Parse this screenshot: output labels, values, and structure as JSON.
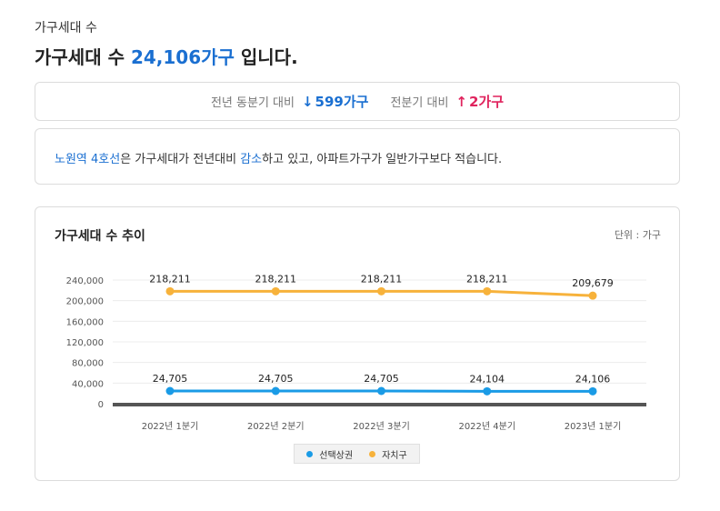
{
  "section_label": "가구세대 수",
  "headline": {
    "prefix": "가구세대 수 ",
    "value": "24,106가구",
    "suffix": " 입니다."
  },
  "comparison": {
    "yoy_label": "전년 동분기 대비",
    "yoy_arrow": "↓",
    "yoy_value": "599가구",
    "qoq_label": "전분기 대비",
    "qoq_arrow": "↑",
    "qoq_value": "2가구"
  },
  "summary": {
    "area": "노원역 4호선",
    "text1": "은 가구세대가 전년대비 ",
    "trend": "감소",
    "text2": "하고 있고, 아파트가구가 일반가구보다 적습니다."
  },
  "chart_header": {
    "title": "가구세대 수 추이",
    "unit": "단위 : 가구"
  },
  "colors": {
    "accent": "#1a6fd1",
    "increase": "#e0245e",
    "series_selected": "#1a9be6",
    "series_district": "#f7b23b"
  },
  "chart_data": {
    "type": "line",
    "categories": [
      "2022년 1분기",
      "2022년 2분기",
      "2022년 3분기",
      "2022년 4분기",
      "2023년 1분기"
    ],
    "series": [
      {
        "name": "선택상권",
        "color": "#1a9be6",
        "values": [
          24705,
          24705,
          24705,
          24104,
          24106
        ],
        "labels": [
          "24,705",
          "24,705",
          "24,705",
          "24,104",
          "24,106"
        ]
      },
      {
        "name": "자치구",
        "color": "#f7b23b",
        "values": [
          218211,
          218211,
          218211,
          218211,
          209679
        ],
        "labels": [
          "218,211",
          "218,211",
          "218,211",
          "218,211",
          "209,679"
        ]
      }
    ],
    "yticks": [
      0,
      40000,
      80000,
      120000,
      160000,
      200000,
      240000
    ],
    "ytick_labels": [
      "0",
      "40,000",
      "80,000",
      "120,000",
      "160,000",
      "200,000",
      "240,000"
    ],
    "ylim": [
      0,
      240000
    ],
    "grid": true,
    "legend": "bottom"
  }
}
